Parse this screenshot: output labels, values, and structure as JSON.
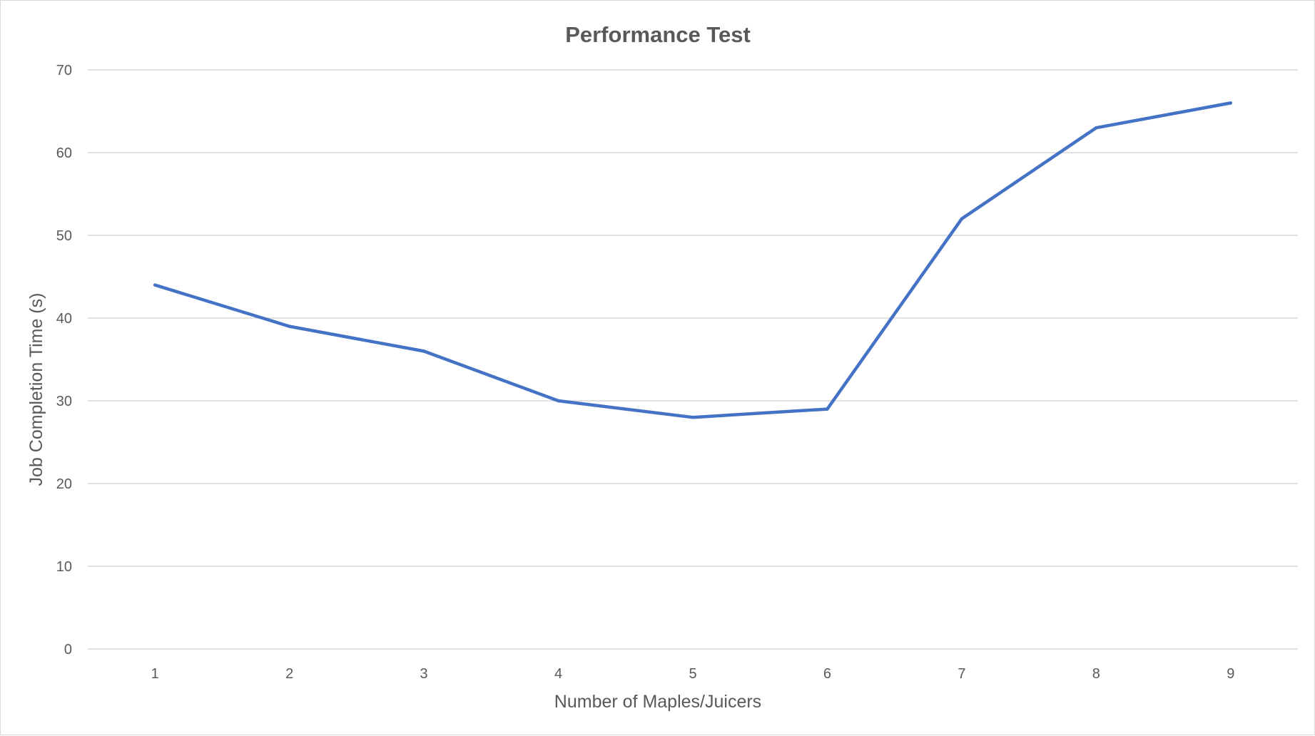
{
  "chart_data": {
    "type": "line",
    "title": "Performance Test",
    "xlabel": "Number of Maples/Juicers",
    "ylabel": "Job Completion Time (s)",
    "categories": [
      "1",
      "2",
      "3",
      "4",
      "5",
      "6",
      "7",
      "8",
      "9"
    ],
    "series": [
      {
        "values": [
          44,
          39,
          36,
          30,
          28,
          29,
          52,
          63,
          66
        ],
        "color": "#4472c4"
      }
    ],
    "ylim": [
      0,
      70
    ],
    "yticks": [
      0,
      10,
      20,
      30,
      40,
      50,
      60,
      70
    ],
    "grid": true,
    "legend": "none"
  }
}
